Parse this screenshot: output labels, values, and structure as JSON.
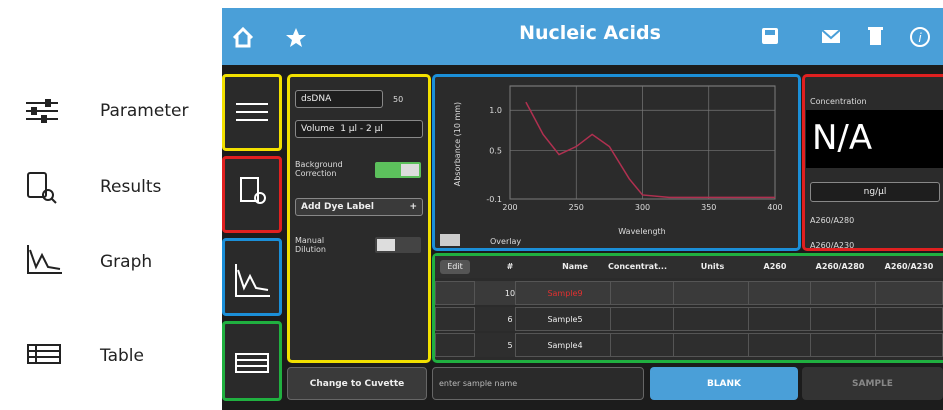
{
  "legend": [
    {
      "label": "Parameter"
    },
    {
      "label": "Results"
    },
    {
      "label": "Graph"
    },
    {
      "label": "Table"
    }
  ],
  "header": {
    "title": "Nucleic Acids"
  },
  "parameters": {
    "sample_type": "dsDNA",
    "factor": "50",
    "volume_label": "Volume",
    "volume_value": "1 µl - 2 µl",
    "background_correction": "Background Correction",
    "add_dye_label": "Add Dye Label",
    "add_symbol": "+",
    "manual_dilution": "Manual Dilution"
  },
  "graph": {
    "y_label": "Absorbance (10 mm)",
    "x_label": "Wavelength",
    "overlay": "Overlay",
    "xlim": [
      200,
      400
    ],
    "ylim": [
      -0.1,
      1.3
    ],
    "xticks": [
      200,
      250,
      300,
      350,
      400
    ],
    "yticks": [
      {
        "value": 1.0,
        "label": "1.0"
      },
      0.5,
      -0.1
    ],
    "curve": {
      "x": [
        212,
        225,
        237,
        250,
        262,
        275,
        290,
        300,
        320,
        360,
        400
      ],
      "y": [
        1.1,
        0.7,
        0.45,
        0.55,
        0.7,
        0.55,
        0.15,
        -0.05,
        -0.08,
        -0.08,
        -0.08
      ]
    }
  },
  "concentration": {
    "title": "Concentration",
    "value": "N/A",
    "unit": "ng/µl",
    "ratio1": "A260/A280",
    "ratio2": "A260/A230"
  },
  "table": {
    "edit": "Edit",
    "columns": [
      "#",
      "Name",
      "Concentrat...",
      "Units",
      "A260",
      "A260/A280",
      "A260/A230"
    ],
    "rows": [
      [
        "10",
        "Sample9"
      ],
      [
        "6",
        "Sample5"
      ],
      [
        "5",
        "Sample4"
      ]
    ]
  },
  "footer": {
    "cuvette": "Change to Cuvette",
    "placeholder": "enter sample name",
    "blank": "BLANK",
    "sample": "SAMPLE"
  }
}
